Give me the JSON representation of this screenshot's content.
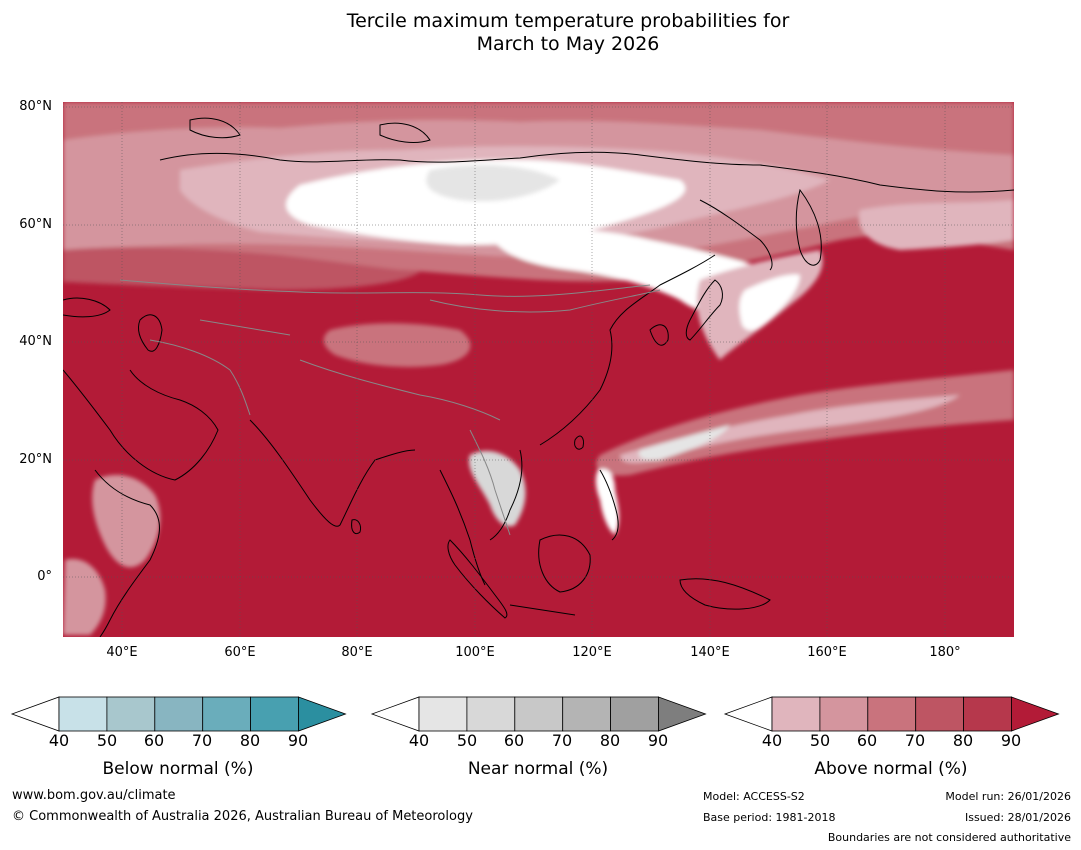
{
  "title": {
    "line1": "Tercile maximum temperature probabilities for",
    "line2": "March to May 2026"
  },
  "map": {
    "lat_labels": [
      "80°N",
      "60°N",
      "40°N",
      "20°N",
      "0°"
    ],
    "lon_labels": [
      "40°E",
      "60°E",
      "80°E",
      "100°E",
      "120°E",
      "140°E",
      "160°E",
      "180°"
    ],
    "ocean_color": "#b31b37",
    "gridline_color": "#555555"
  },
  "colorbars": [
    {
      "label": "Below normal (%)",
      "ticks": [
        "40",
        "50",
        "60",
        "70",
        "80",
        "90"
      ],
      "colors": [
        "#c8e1e8",
        "#a8c7cd",
        "#88b5c1",
        "#6aadbb",
        "#48a0b0",
        "#2b8fa0"
      ]
    },
    {
      "label": "Near normal (%)",
      "ticks": [
        "40",
        "50",
        "60",
        "70",
        "80",
        "90"
      ],
      "colors": [
        "#e5e5e5",
        "#d8d8d8",
        "#c8c8c8",
        "#b4b4b4",
        "#a0a0a0",
        "#7e7e7e"
      ]
    },
    {
      "label": "Above normal (%)",
      "ticks": [
        "40",
        "50",
        "60",
        "70",
        "80",
        "90"
      ],
      "colors": [
        "#e0b5bd",
        "#d4959e",
        "#c9737d",
        "#be5563",
        "#b6384c",
        "#b31b37"
      ]
    }
  ],
  "footer": {
    "website": "www.bom.gov.au/climate",
    "copyright": "© Commonwealth of Australia 2026, Australian Bureau of Meteorology",
    "model": "Model: ACCESS-S2",
    "base_period": "Base period: 1981-2018",
    "model_run": "Model run: 26/01/2026",
    "issued": "Issued: 28/01/2026",
    "disclaimer": "Boundaries are not considered authoritative"
  }
}
